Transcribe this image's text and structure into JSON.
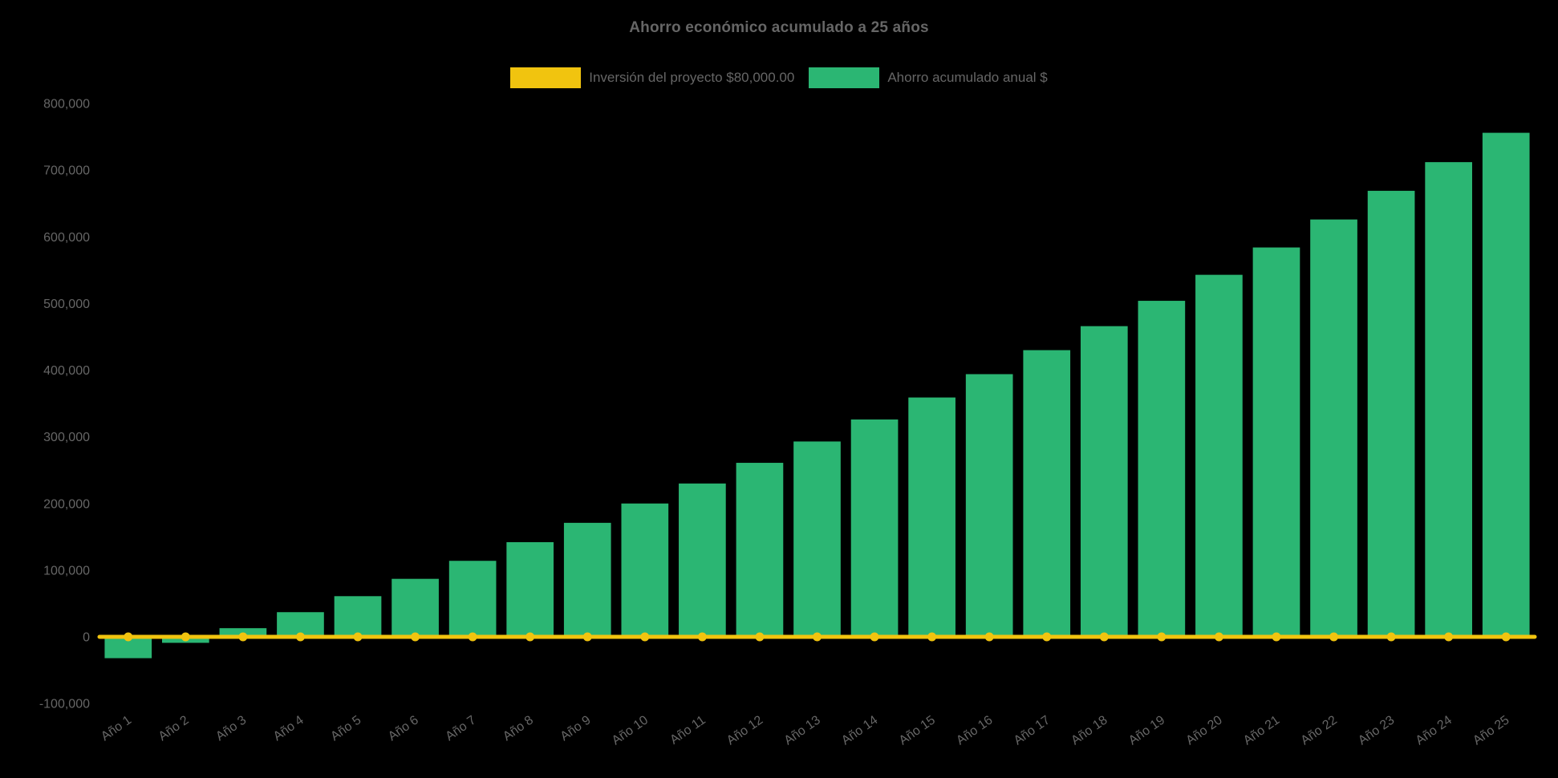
{
  "page": {
    "background": "#000000",
    "text_color": "#666666"
  },
  "chart_data": {
    "type": "bar",
    "title": "Ahorro económico acumulado a 25 años",
    "categories": [
      "Año 1",
      "Año 2",
      "Año 3",
      "Año 4",
      "Año 5",
      "Año 6",
      "Año 7",
      "Año 8",
      "Año 9",
      "Año 10",
      "Año 11",
      "Año 12",
      "Año 13",
      "Año 14",
      "Año 15",
      "Año 16",
      "Año 17",
      "Año 18",
      "Año 19",
      "Año 20",
      "Año 21",
      "Año 22",
      "Año 23",
      "Año 24",
      "Año 25"
    ],
    "series": [
      {
        "name": "Inversión del proyecto $80,000.00",
        "type": "line",
        "color": "#F1C40F",
        "values": [
          0,
          0,
          0,
          0,
          0,
          0,
          0,
          0,
          0,
          0,
          0,
          0,
          0,
          0,
          0,
          0,
          0,
          0,
          0,
          0,
          0,
          0,
          0,
          0,
          0
        ]
      },
      {
        "name": "Ahorro acumulado anual $",
        "type": "bar",
        "color": "#2BB673",
        "values": [
          -32000,
          -9000,
          13000,
          37000,
          61000,
          87000,
          114000,
          142000,
          171000,
          200000,
          230000,
          261000,
          293000,
          326000,
          359000,
          394000,
          430000,
          466000,
          504000,
          543000,
          584000,
          626000,
          669000,
          712000,
          756000
        ]
      }
    ],
    "xlabel": "",
    "ylabel": "",
    "ylim": [
      -100000,
      800000
    ],
    "ytick_step": 100000,
    "ytick_labels": [
      "800,000",
      "700,000",
      "600,000",
      "500,000",
      "400,000",
      "300,000",
      "200,000",
      "100,000",
      "0",
      "-100,000"
    ],
    "grid": false,
    "legend_position": "top"
  }
}
